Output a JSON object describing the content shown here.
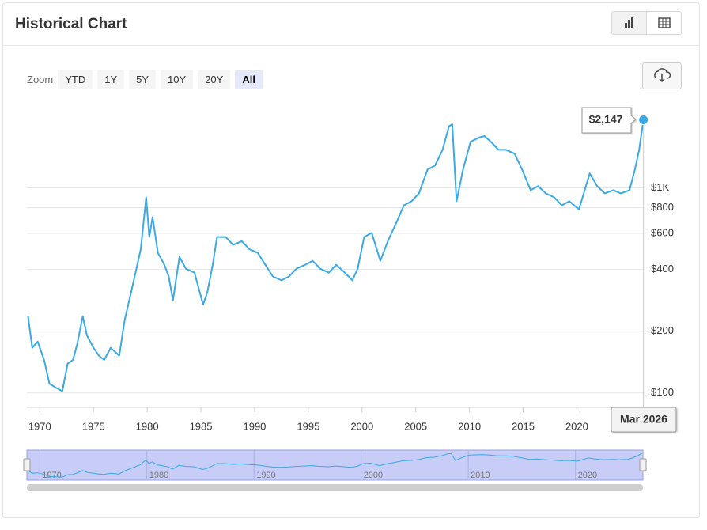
{
  "header": {
    "title": "Historical Chart"
  },
  "zoom": {
    "label": "Zoom",
    "buttons": [
      "YTD",
      "1Y",
      "5Y",
      "10Y",
      "20Y",
      "All"
    ],
    "active": "All"
  },
  "chart_data": {
    "type": "line",
    "color": "#3aa9e6",
    "log_scale": true,
    "grid": true,
    "x": [
      1968.9,
      1969.3,
      1969.8,
      1970.4,
      1970.9,
      1971.5,
      1972.1,
      1972.6,
      1973.1,
      1973.5,
      1974.0,
      1974.4,
      1975.0,
      1975.5,
      1976.0,
      1976.6,
      1977.4,
      1977.9,
      1978.5,
      1979.0,
      1979.4,
      1979.9,
      1980.2,
      1980.5,
      1981.0,
      1981.6,
      1982.0,
      1982.4,
      1983.0,
      1983.6,
      1984.4,
      1985.2,
      1985.6,
      1986.1,
      1986.5,
      1987.3,
      1988.0,
      1988.8,
      1989.5,
      1990.3,
      1991.0,
      1991.7,
      1992.5,
      1993.2,
      1993.9,
      1994.7,
      1995.4,
      1996.1,
      1996.9,
      1997.6,
      1998.4,
      1999.1,
      1999.6,
      2000.2,
      2000.9,
      2001.7,
      2002.4,
      2003.1,
      2003.9,
      2004.6,
      2005.3,
      2006.1,
      2006.8,
      2007.5,
      2008.1,
      2008.4,
      2008.8,
      2009.4,
      2010.1,
      2010.9,
      2011.4,
      2012.0,
      2012.7,
      2013.4,
      2014.2,
      2014.9,
      2015.7,
      2016.4,
      2017.1,
      2017.9,
      2018.6,
      2019.3,
      2020.2,
      2021.2,
      2021.9,
      2022.6,
      2023.4,
      2024.1,
      2024.9,
      2025.4,
      2025.8,
      2026.2
    ],
    "values": [
      237,
      166,
      178,
      145,
      111,
      106,
      102,
      139,
      145,
      174,
      237,
      190,
      166,
      152,
      145,
      166,
      152,
      226,
      310,
      404,
      503,
      900,
      576,
      720,
      482,
      422,
      370,
      283,
      460,
      404,
      386,
      270,
      310,
      422,
      576,
      576,
      527,
      550,
      503,
      482,
      422,
      370,
      354,
      370,
      404,
      422,
      441,
      404,
      386,
      422,
      386,
      354,
      404,
      576,
      604,
      441,
      550,
      660,
      822,
      861,
      941,
      1228,
      1286,
      1534,
      2000,
      2040,
      861,
      1228,
      1680,
      1760,
      1790,
      1680,
      1534,
      1534,
      1470,
      1228,
      975,
      1020,
      941,
      899,
      822,
      861,
      786,
      1177,
      1020,
      941,
      975,
      941,
      975,
      1228,
      1534,
      2147
    ],
    "xlim": [
      1968.8,
      2026.3
    ],
    "xticks": [
      1970,
      1975,
      1980,
      1985,
      1990,
      1995,
      2000,
      2005,
      2010,
      2015,
      2020
    ],
    "ylim": [
      85,
      2600
    ],
    "yticks": [
      {
        "value": 100,
        "label": "$100"
      },
      {
        "value": 200,
        "label": "$200"
      },
      {
        "value": 400,
        "label": "$400"
      },
      {
        "value": 600,
        "label": "$600"
      },
      {
        "value": 800,
        "label": "$800"
      },
      {
        "value": 1000,
        "label": "$1K"
      }
    ],
    "tooltip": {
      "label": "$2,147",
      "date": "Mar 2026"
    }
  },
  "navigator": {
    "xticks": [
      1970,
      1980,
      1990,
      2000,
      2010,
      2020
    ]
  }
}
